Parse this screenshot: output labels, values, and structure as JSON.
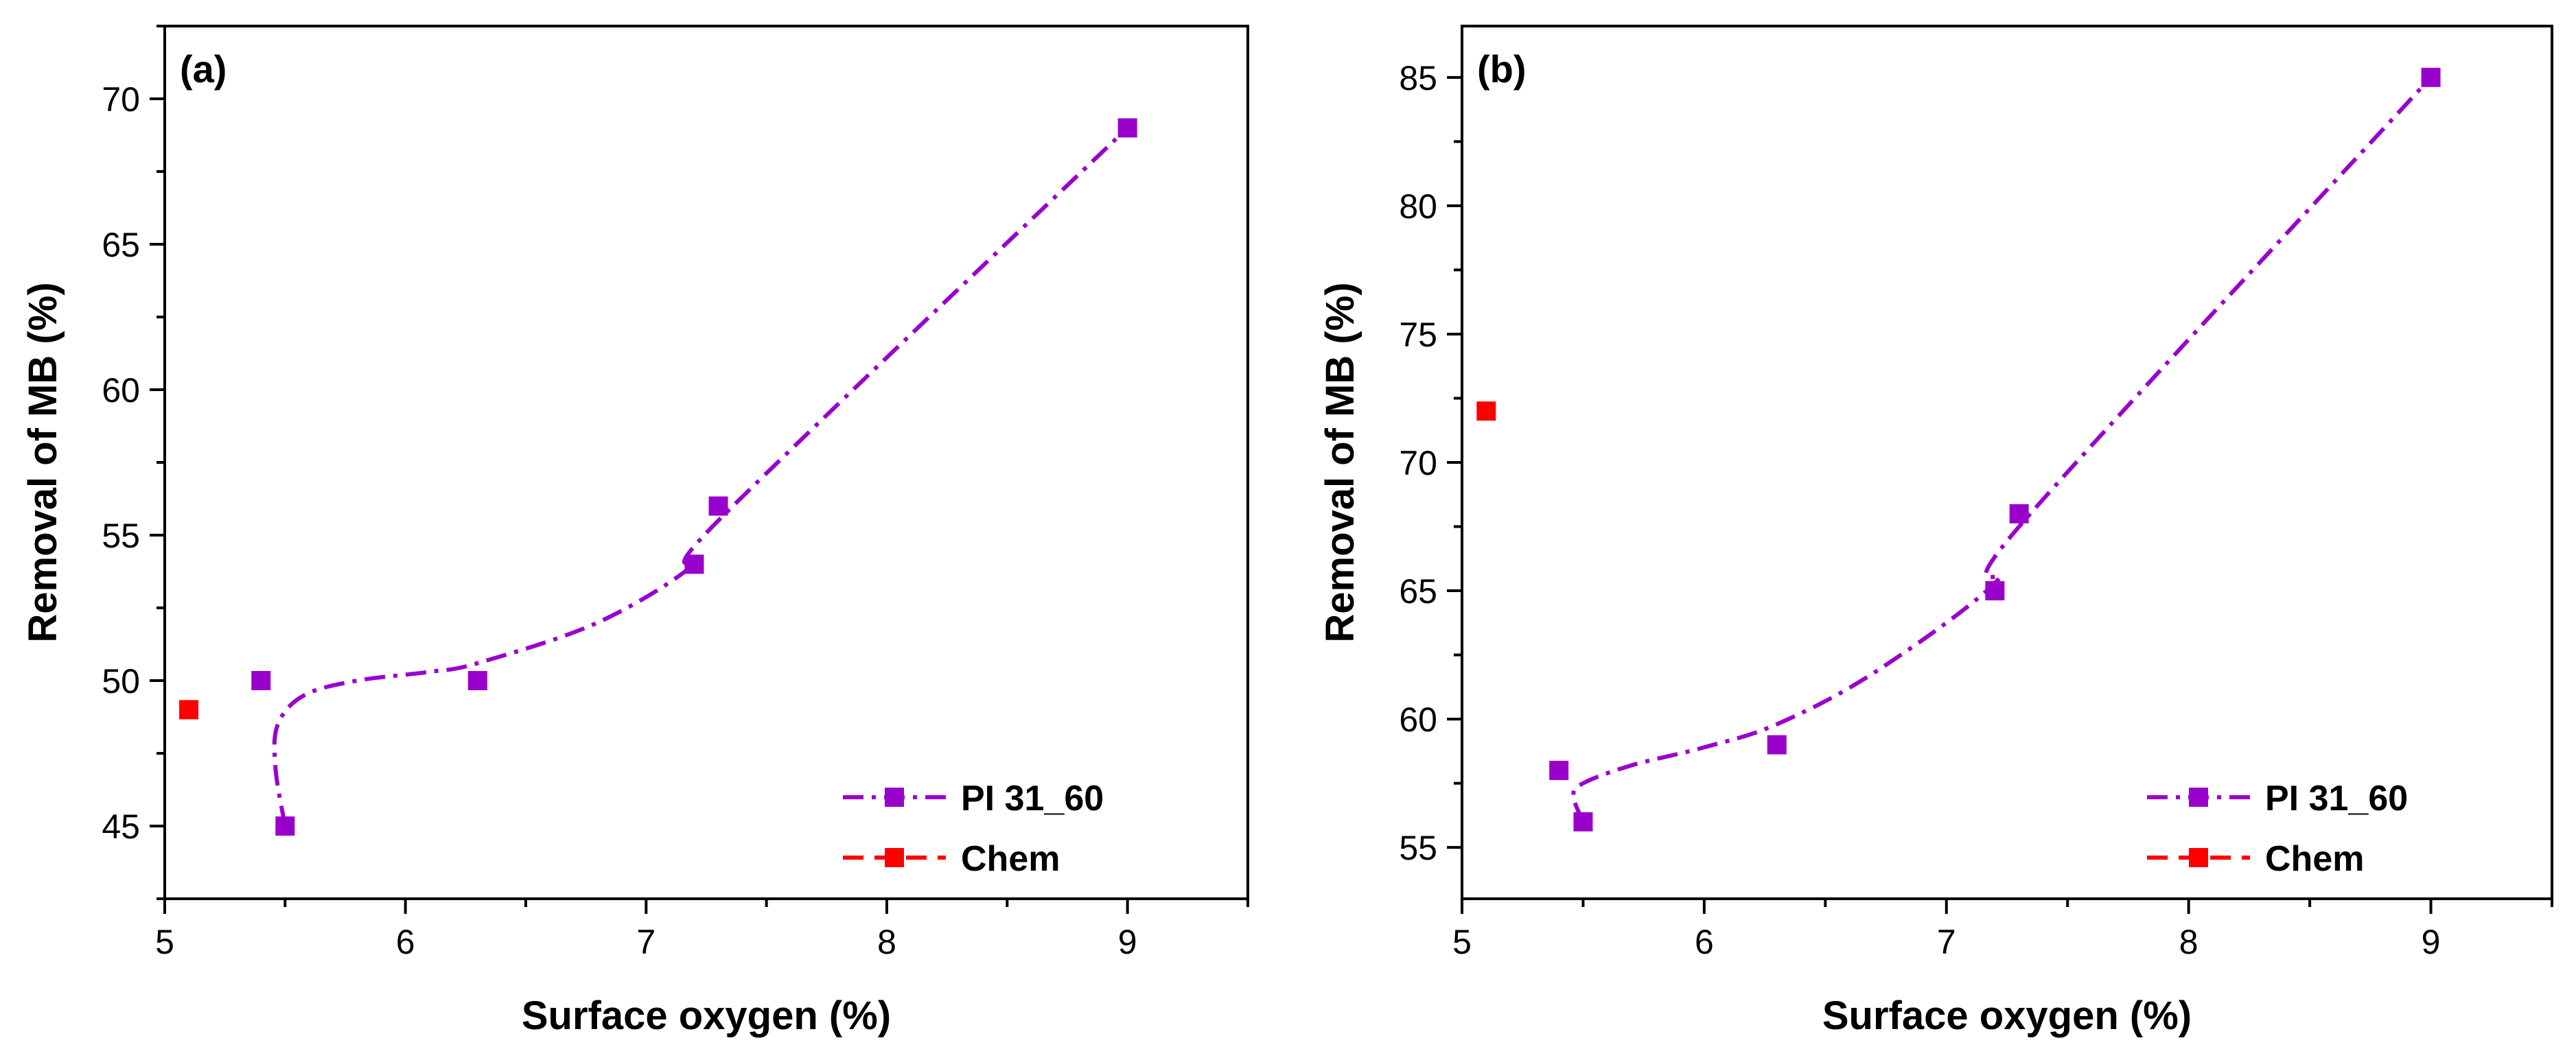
{
  "colors": {
    "pi_series": "#9a00cc",
    "chem_series": "#ff0000",
    "axis": "#000000",
    "background": "#ffffff"
  },
  "chart_data": [
    {
      "type": "scatter",
      "panel_label": "(a)",
      "xlabel": "Surface oxygen (%)",
      "ylabel": "Removal of MB (%)",
      "xlim": [
        5,
        9.5
      ],
      "ylim": [
        42.5,
        72.5
      ],
      "xticks": [
        5,
        6,
        7,
        8,
        9
      ],
      "yticks": [
        45,
        50,
        55,
        60,
        65,
        70
      ],
      "grid": false,
      "legend_position": "bottom-right",
      "series": [
        {
          "name": "PI 31_60",
          "color": "#9a00cc",
          "marker": "square",
          "line_style": "dash-dot",
          "x": [
            5.4,
            5.5,
            6.3,
            7.2,
            7.3,
            9.0
          ],
          "y": [
            50,
            45,
            50,
            54,
            56,
            69
          ],
          "fit_curve": {
            "x": [
              5.5,
              5.46,
              5.47,
              5.58,
              5.8,
              6.1,
              6.3,
              6.8,
              7.2,
              7.3,
              9.0
            ],
            "y": [
              45,
              47,
              48.5,
              49.5,
              50,
              50.3,
              50.6,
              52,
              54,
              55.5,
              69
            ]
          }
        },
        {
          "name": "Chem",
          "color": "#ff0000",
          "marker": "square",
          "line_style": "dashed",
          "x": [
            5.1
          ],
          "y": [
            49
          ]
        }
      ]
    },
    {
      "type": "scatter",
      "panel_label": "(b)",
      "xlabel": "Surface oxygen (%)",
      "ylabel": "Removal of MB (%)",
      "xlim": [
        5,
        9.5
      ],
      "ylim": [
        53,
        87
      ],
      "xticks": [
        5,
        6,
        7,
        8,
        9
      ],
      "yticks": [
        55,
        60,
        65,
        70,
        75,
        80,
        85
      ],
      "grid": false,
      "legend_position": "bottom-right",
      "series": [
        {
          "name": "PI 31_60",
          "color": "#9a00cc",
          "marker": "square",
          "line_style": "dash-dot",
          "x": [
            5.4,
            5.5,
            6.3,
            7.2,
            7.3,
            9.0
          ],
          "y": [
            58,
            56,
            59,
            65,
            68,
            85
          ],
          "fit_curve": {
            "x": [
              5.5,
              5.46,
              5.5,
              5.7,
              6.0,
              6.3,
              6.7,
              7.2,
              7.3,
              9.0
            ],
            "y": [
              56,
              57,
              57.5,
              58.2,
              58.9,
              59.8,
              61.8,
              65.3,
              67.5,
              85
            ]
          }
        },
        {
          "name": "Chem",
          "color": "#ff0000",
          "marker": "square",
          "line_style": "dashed",
          "x": [
            5.1
          ],
          "y": [
            72
          ]
        }
      ]
    }
  ]
}
